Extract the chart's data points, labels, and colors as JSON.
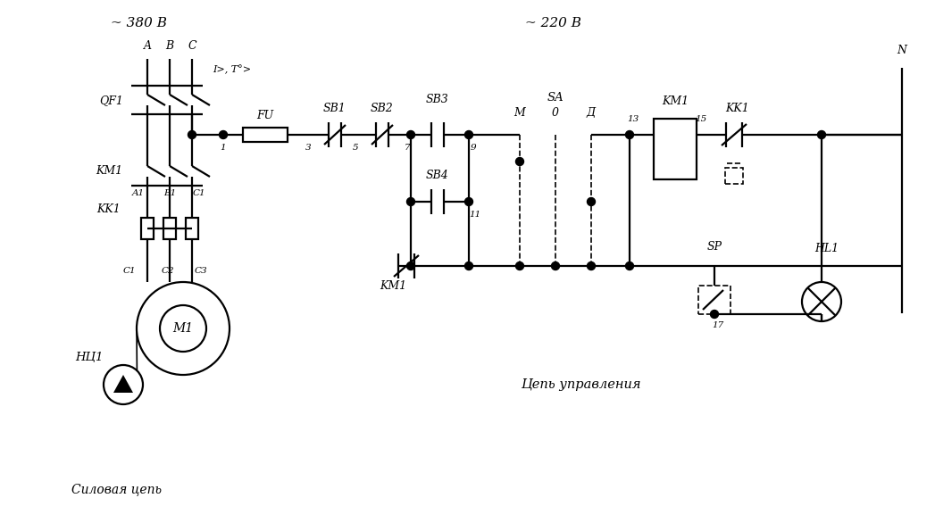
{
  "background_color": "#ffffff",
  "line_color": "#000000",
  "voltage_380": "~ 380 В",
  "voltage_220": "~ 220 В",
  "label_N": "N",
  "label_QF1": "QF1",
  "label_KM1_power": "KM1",
  "label_KK1_power": "KK1",
  "label_A": "A",
  "label_B": "B",
  "label_C": "C",
  "label_IT": "I>, T°>",
  "label_FU": "FU",
  "label_SB1": "SB1",
  "label_SB2": "SB2",
  "label_SB3": "SB3",
  "label_SB4": "SB4",
  "label_SA": "SA",
  "label_M": "M",
  "label_0": "0",
  "label_D": "Д",
  "label_KM1_ctrl": "KM1",
  "label_KK1_ctrl": "KK1",
  "label_SP": "SP",
  "label_HL1": "HL1",
  "label_M1": "M1",
  "label_NC1": "НЦ1",
  "label_C1": "C1",
  "label_C2": "C2",
  "label_C3": "C3",
  "label_A1": "A1",
  "label_B1": "B1",
  "label_C1b": "C1",
  "node_1": "1",
  "node_3": "3",
  "node_5": "5",
  "node_7": "7",
  "node_9": "9",
  "node_11": "11",
  "node_13": "13",
  "node_15": "15",
  "node_17": "17",
  "label_silovaya": "Силовая цепь",
  "label_upravleniya": "Цепь управления"
}
